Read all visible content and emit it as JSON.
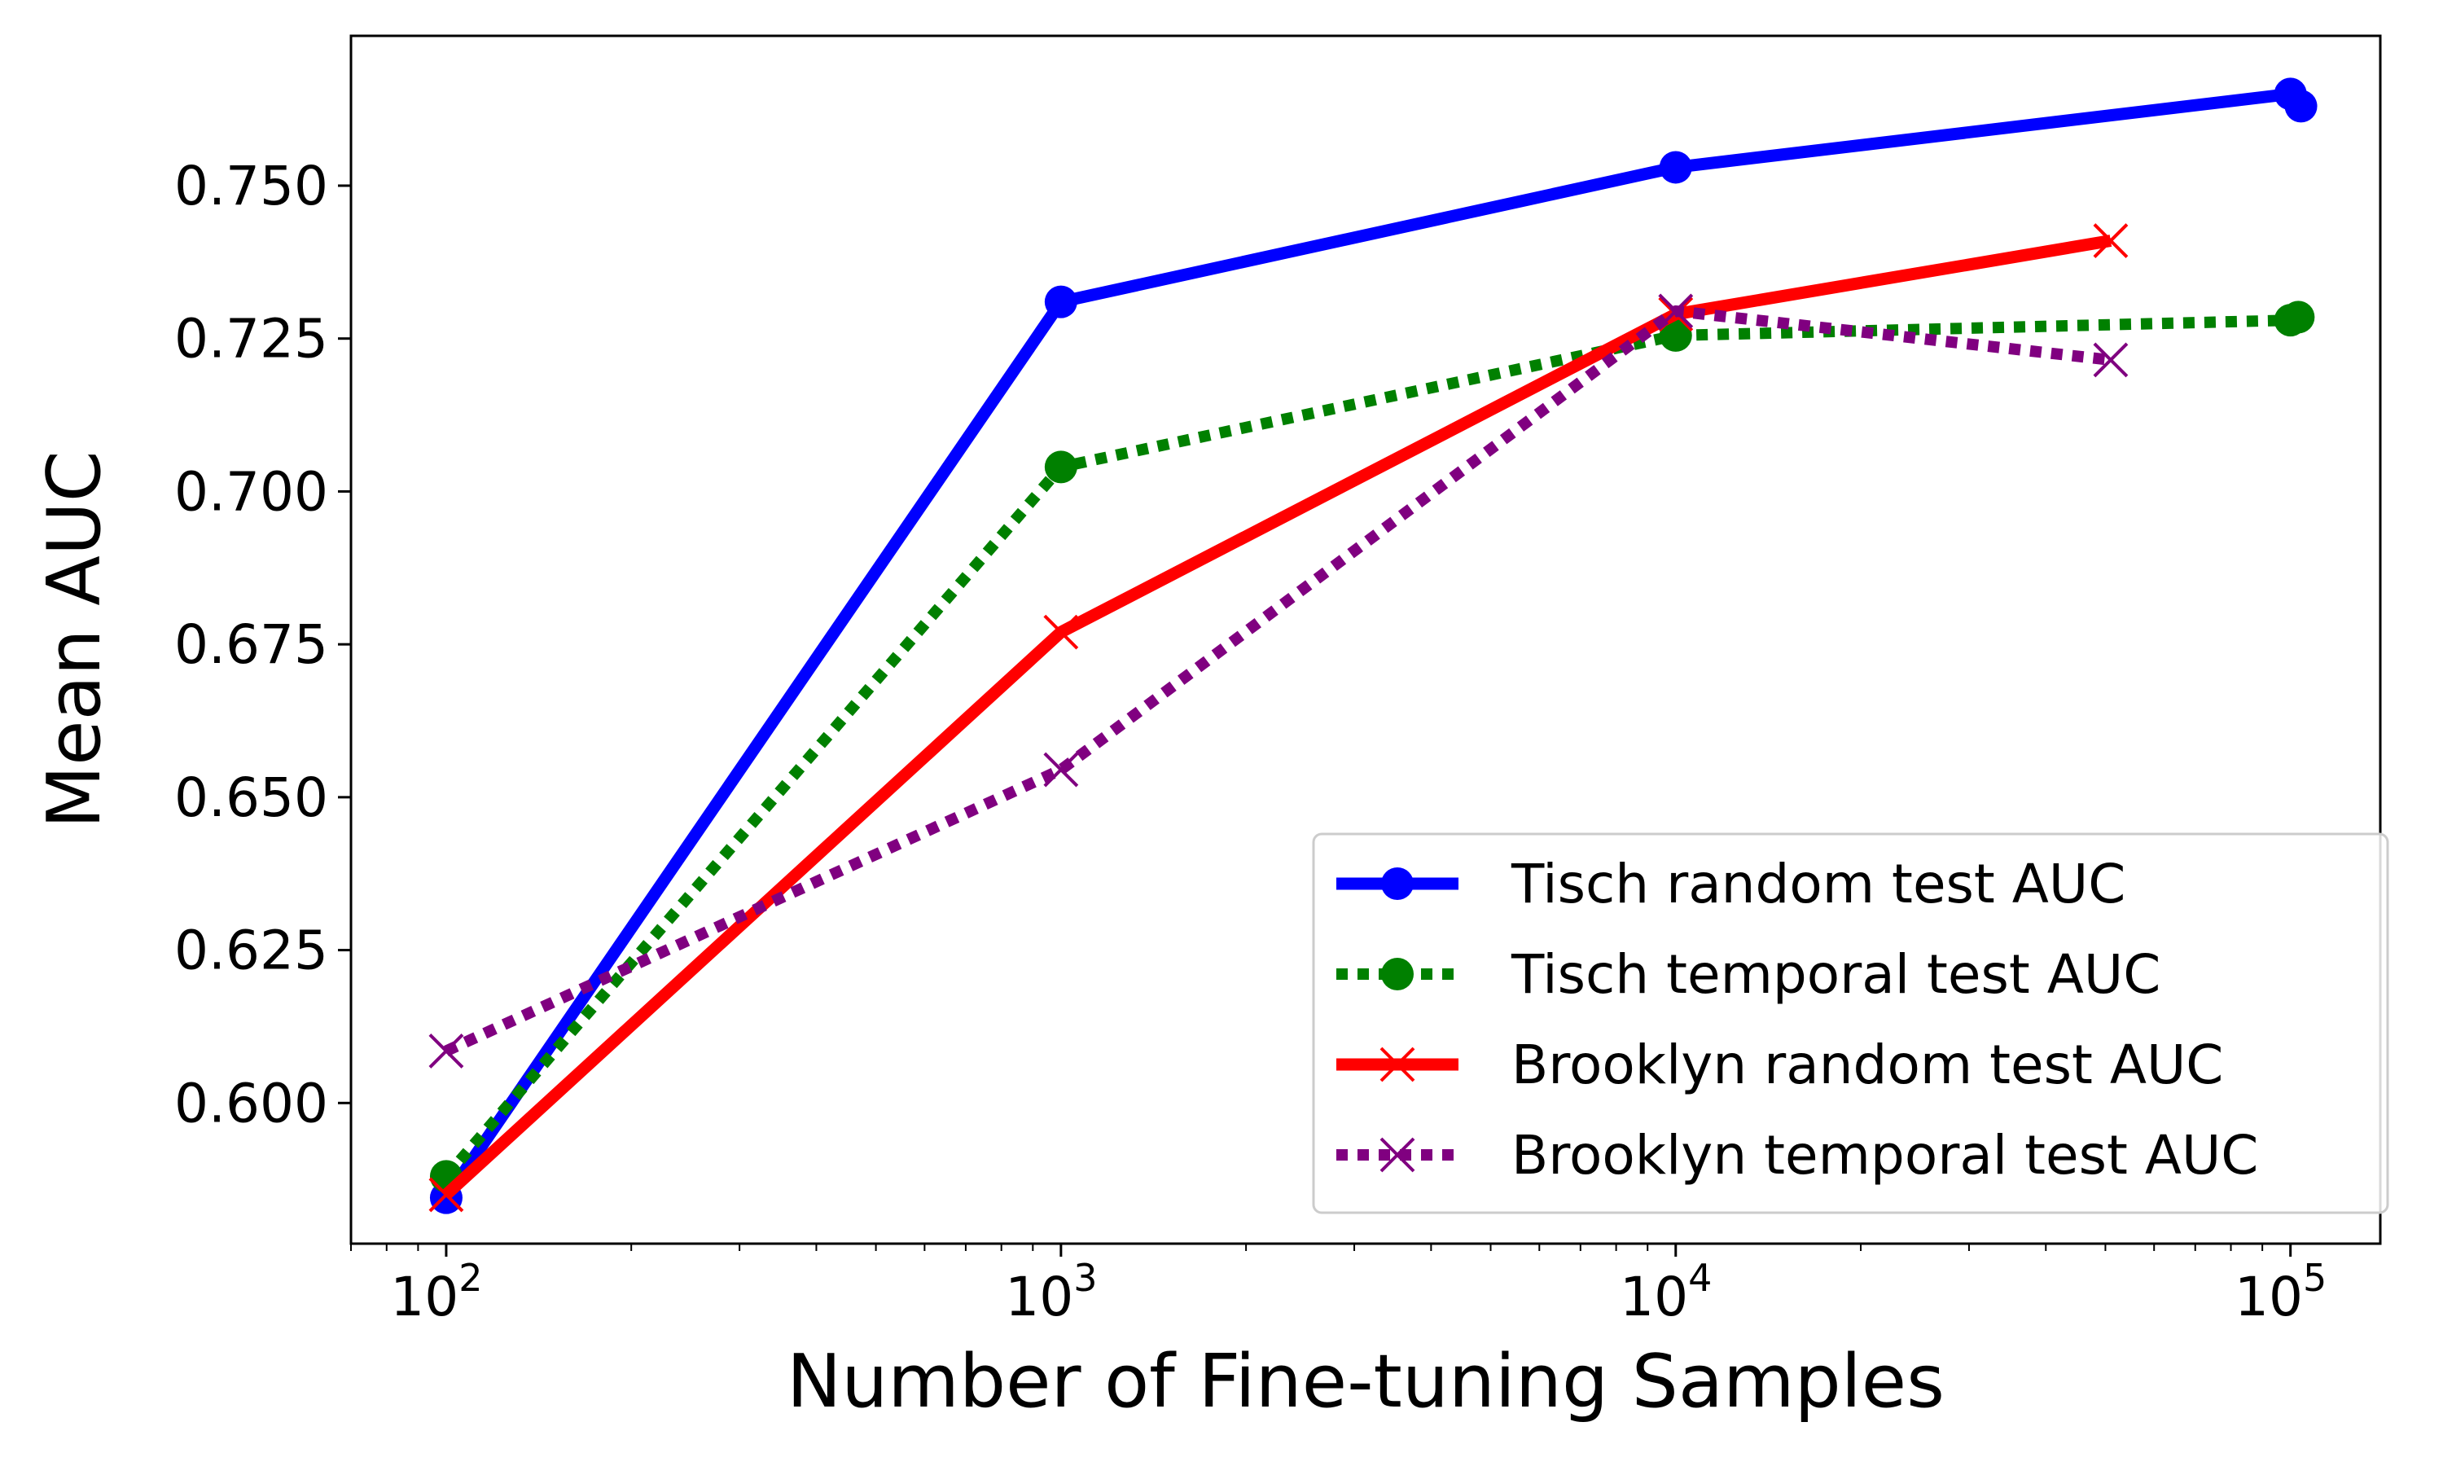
{
  "chart_data": {
    "type": "line",
    "xlabel": "Number of Fine-tuning Samples",
    "ylabel": "Mean AUC",
    "xscale": "log",
    "xlim": [
      70,
      140000
    ],
    "ylim": [
      0.577,
      0.7745
    ],
    "x_ticks": [
      {
        "value": 100,
        "base": "10",
        "exp": "2"
      },
      {
        "value": 1000,
        "base": "10",
        "exp": "3"
      },
      {
        "value": 10000,
        "base": "10",
        "exp": "4"
      },
      {
        "value": 100000,
        "base": "10",
        "exp": "5"
      }
    ],
    "y_ticks": [
      {
        "value": 0.6,
        "label": "0.600"
      },
      {
        "value": 0.625,
        "label": "0.625"
      },
      {
        "value": 0.65,
        "label": "0.650"
      },
      {
        "value": 0.675,
        "label": "0.675"
      },
      {
        "value": 0.7,
        "label": "0.700"
      },
      {
        "value": 0.725,
        "label": "0.725"
      },
      {
        "value": 0.75,
        "label": "0.750"
      }
    ],
    "grid": false,
    "legend_position": "lower-right",
    "series": [
      {
        "name": "Tisch random test AUC",
        "color": "#0000ff",
        "line": "solid",
        "marker": "circle",
        "x": [
          100,
          1000,
          10000,
          100000,
          104000
        ],
        "y": [
          0.5845,
          0.731,
          0.753,
          0.765,
          0.763
        ]
      },
      {
        "name": "Tisch temporal test AUC",
        "color": "#008000",
        "line": "dotted",
        "marker": "circle",
        "x": [
          100,
          1000,
          10000,
          100000,
          103000
        ],
        "y": [
          0.588,
          0.704,
          0.7255,
          0.728,
          0.7285
        ]
      },
      {
        "name": "Brooklyn random test AUC",
        "color": "#ff0000",
        "line": "solid",
        "marker": "x",
        "x": [
          100,
          1000,
          10000,
          51000
        ],
        "y": [
          0.585,
          0.677,
          0.729,
          0.741
        ]
      },
      {
        "name": "Brooklyn temporal test AUC",
        "color": "#800080",
        "line": "dotted",
        "marker": "x",
        "x": [
          100,
          1000,
          10000,
          51000
        ],
        "y": [
          0.6085,
          0.6545,
          0.7295,
          0.7215
        ]
      }
    ]
  }
}
